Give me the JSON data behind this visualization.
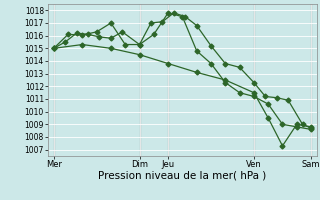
{
  "bg_color": "#cce8e8",
  "grid_color": "#b0d8d0",
  "line_color": "#2d6629",
  "marker": "D",
  "markersize": 2.5,
  "linewidth": 0.9,
  "xlabel": "Pression niveau de la mer( hPa )",
  "xlabel_fontsize": 7.5,
  "ylim": [
    1006.5,
    1018.5
  ],
  "yticks": [
    1007,
    1008,
    1009,
    1010,
    1011,
    1012,
    1013,
    1014,
    1015,
    1016,
    1017,
    1018
  ],
  "ytick_fontsize": 5.5,
  "xtick_fontsize": 6.0,
  "vline_positions": [
    0.0,
    3.0,
    4.0,
    7.0,
    9.0
  ],
  "vline_color": "#333333",
  "xlim": [
    -0.2,
    9.2
  ],
  "xtick_positions": [
    0.0,
    3.0,
    4.0,
    7.0,
    9.0
  ],
  "xtick_labels": [
    "Mer",
    "Dim",
    "Jeu",
    "Ven",
    "Sam"
  ],
  "line1_x": [
    0.0,
    0.4,
    0.8,
    1.2,
    1.6,
    2.0,
    2.4,
    3.0,
    3.4,
    3.8,
    4.2,
    4.6,
    5.0,
    5.5,
    6.0,
    6.5,
    7.0,
    7.4,
    7.8,
    8.2,
    8.7,
    9.0
  ],
  "line1_y": [
    1015.0,
    1015.5,
    1016.2,
    1016.1,
    1015.9,
    1015.8,
    1016.3,
    1015.3,
    1017.0,
    1017.1,
    1017.8,
    1017.5,
    1016.8,
    1015.2,
    1013.8,
    1013.5,
    1012.3,
    1011.2,
    1011.1,
    1010.9,
    1009.0,
    1008.7
  ],
  "line2_x": [
    0.0,
    0.5,
    1.0,
    1.5,
    2.0,
    2.5,
    3.0,
    3.5,
    4.0,
    4.5,
    5.0,
    5.5,
    6.0,
    6.5,
    7.0,
    7.5,
    8.0,
    8.5,
    9.0
  ],
  "line2_y": [
    1015.0,
    1016.1,
    1016.05,
    1016.3,
    1017.0,
    1015.3,
    1015.3,
    1016.1,
    1017.8,
    1017.5,
    1014.8,
    1013.8,
    1012.3,
    1011.5,
    1011.2,
    1010.6,
    1009.0,
    1008.8,
    1008.6
  ],
  "line3_x": [
    0.0,
    1.0,
    2.0,
    3.0,
    4.0,
    5.0,
    6.0,
    7.0,
    7.5,
    8.0,
    8.5,
    9.0
  ],
  "line3_y": [
    1015.0,
    1015.3,
    1015.0,
    1014.5,
    1013.8,
    1013.1,
    1012.5,
    1011.5,
    1009.5,
    1007.3,
    1009.0,
    1008.8
  ]
}
